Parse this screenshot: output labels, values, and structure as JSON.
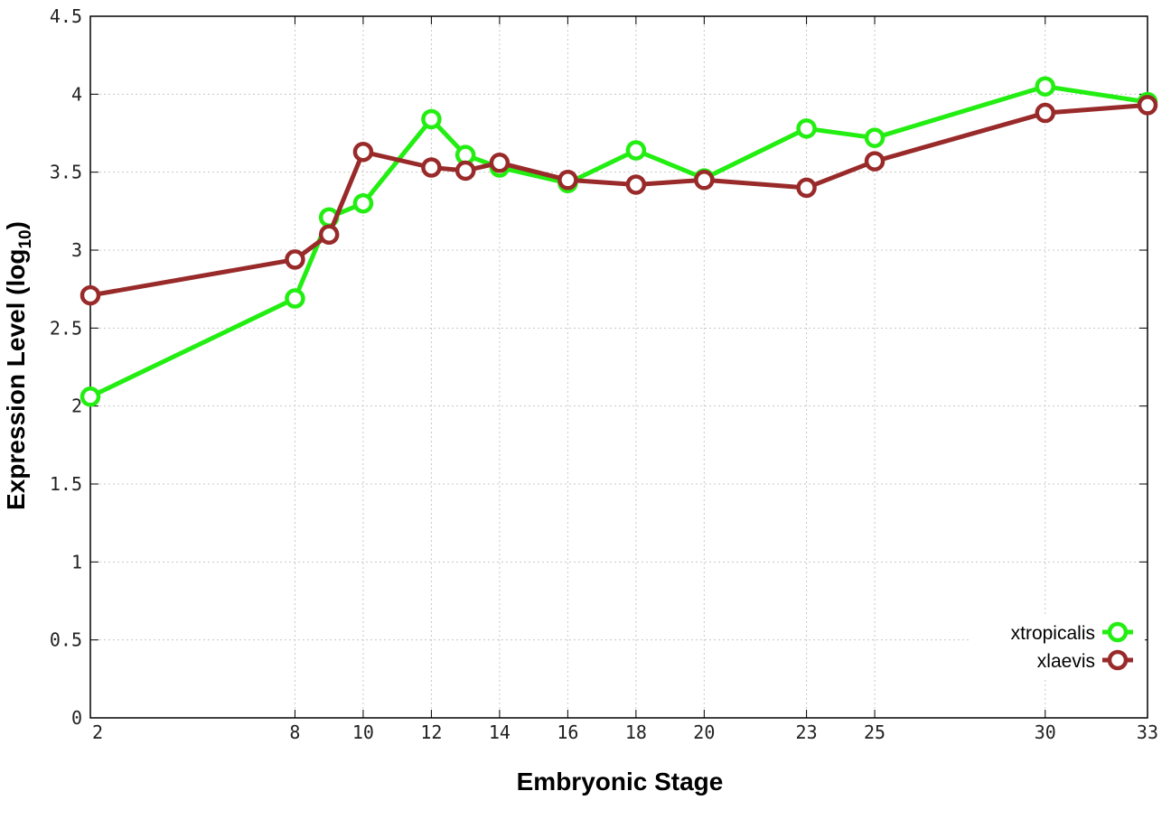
{
  "chart_data": {
    "type": "line",
    "xlabel": "Embryonic Stage",
    "ylabel_main": "Expression Level (log",
    "ylabel_sub": "10",
    "ylabel_close": ")",
    "x": [
      2,
      8,
      9,
      10,
      12,
      13,
      14,
      16,
      18,
      20,
      23,
      25,
      30,
      33
    ],
    "x_ticks": [
      "2",
      "8",
      "10",
      "12",
      "14",
      "16",
      "18",
      "20",
      "23",
      "25",
      "30",
      "33"
    ],
    "y_ticks": [
      "0",
      "0.5",
      "1",
      "1.5",
      "2",
      "2.5",
      "3",
      "3.5",
      "4",
      "4.5"
    ],
    "ylim": [
      0,
      4.5
    ],
    "grid": true,
    "legend_position": "bottom-right",
    "series": [
      {
        "name": "xtropicalis",
        "color": "#22ee11",
        "values": [
          2.06,
          2.69,
          3.21,
          3.3,
          3.84,
          3.61,
          3.53,
          3.43,
          3.64,
          3.46,
          3.78,
          3.72,
          4.05,
          3.95
        ]
      },
      {
        "name": "xlaevis",
        "color": "#992a2a",
        "values": [
          2.71,
          2.94,
          3.1,
          3.63,
          3.53,
          3.51,
          3.56,
          3.45,
          3.42,
          3.45,
          3.4,
          3.57,
          3.88,
          3.93
        ]
      }
    ]
  }
}
